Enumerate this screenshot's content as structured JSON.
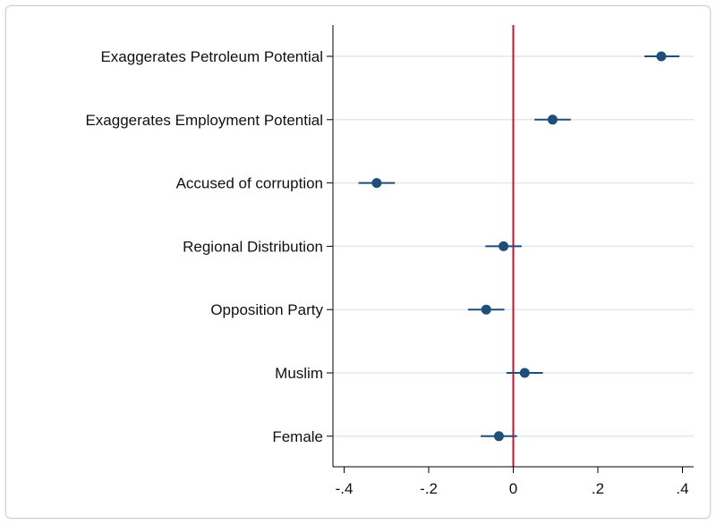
{
  "chart_data": {
    "type": "scatter",
    "orientation": "horizontal",
    "categories": [
      "Exaggerates Petroleum Potential",
      "Exaggerates Employment Potential",
      "Accused of corruption",
      "Regional Distribution",
      "Opposition Party",
      "Muslim",
      "Female"
    ],
    "estimates": [
      0.35,
      0.093,
      -0.323,
      -0.023,
      -0.064,
      0.027,
      -0.034
    ],
    "ci_low": [
      0.31,
      0.05,
      -0.366,
      -0.066,
      -0.107,
      -0.016,
      -0.077
    ],
    "ci_high": [
      0.393,
      0.136,
      -0.28,
      0.02,
      -0.021,
      0.07,
      0.009
    ],
    "xticks": [
      -0.4,
      -0.2,
      0,
      0.2,
      0.4
    ],
    "xtick_labels": [
      "-.4",
      "-.2",
      "0",
      ".2",
      ".4"
    ],
    "xlim": [
      -0.43,
      0.43
    ],
    "reference_line": 0,
    "grid": true,
    "colors": {
      "marker": "#1f4e79",
      "reference_line": "#c8102e",
      "grid": "#dfe9ef",
      "axis": "#000000"
    }
  }
}
